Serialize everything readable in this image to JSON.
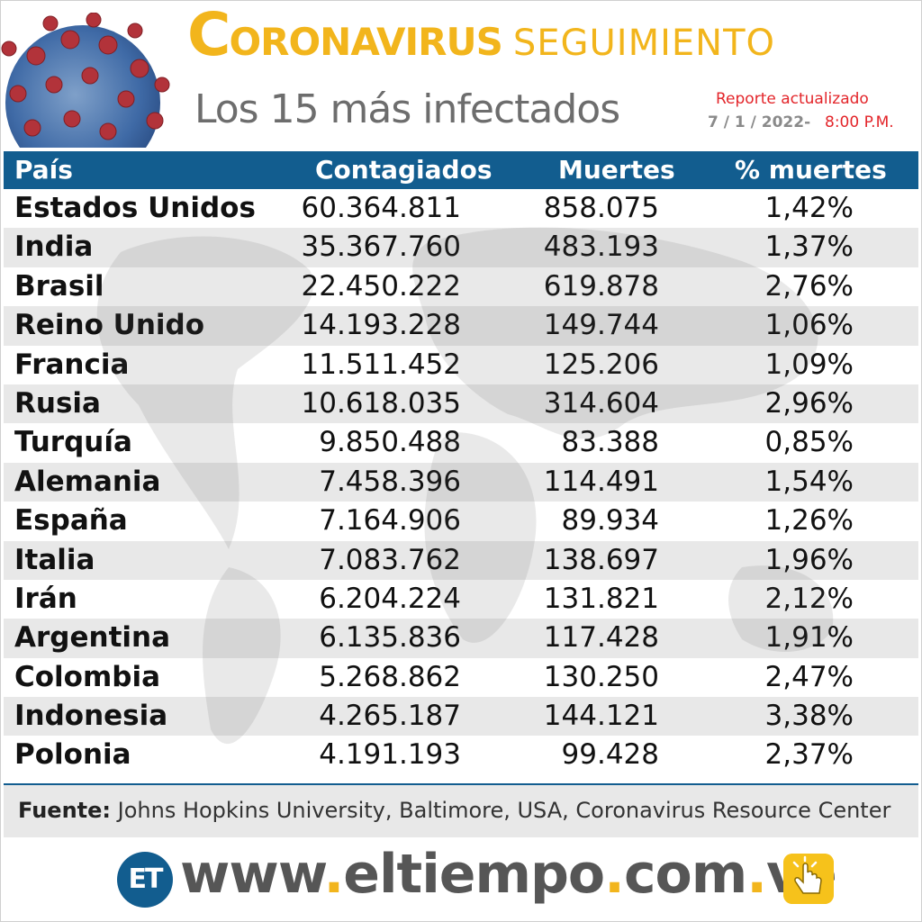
{
  "header": {
    "title_initial": "C",
    "title_rest": "ORONAVIRUS",
    "title_suffix": "SEGUIMIENTO",
    "subtitle": "Los 15 más infectados",
    "report_label": "Reporte actualizado",
    "report_date": "7 / 1 / 2022-",
    "report_time": "8:00 P.M."
  },
  "table": {
    "columns": [
      "País",
      "Contagiados",
      "Muertes",
      "% muertes"
    ],
    "rows": [
      [
        "Estados Unidos",
        "60.364.811",
        "858.075",
        "1,42%"
      ],
      [
        "India",
        "35.367.760",
        "483.193",
        "1,37%"
      ],
      [
        "Brasil",
        "22.450.222",
        "619.878",
        "2,76%"
      ],
      [
        "Reino Unido",
        "14.193.228",
        "149.744",
        "1,06%"
      ],
      [
        "Francia",
        "11.511.452",
        "125.206",
        "1,09%"
      ],
      [
        "Rusia",
        "10.618.035",
        "314.604",
        "2,96%"
      ],
      [
        "Turquía",
        "9.850.488",
        "83.388",
        "0,85%"
      ],
      [
        "Alemania",
        "7.458.396",
        "114.491",
        "1,54%"
      ],
      [
        "España",
        "7.164.906",
        "89.934",
        "1,26%"
      ],
      [
        "Italia",
        "7.083.762",
        "138.697",
        "1,96%"
      ],
      [
        "Irán",
        "6.204.224",
        "131.821",
        "2,12%"
      ],
      [
        "Argentina",
        "6.135.836",
        "117.428",
        "1,91%"
      ],
      [
        "Colombia",
        "5.268.862",
        "130.250",
        "2,47%"
      ],
      [
        "Indonesia",
        "4.265.187",
        "144.121",
        "3,38%"
      ],
      [
        "Polonia",
        "4.191.193",
        "99.428",
        "2,37%"
      ]
    ]
  },
  "source": {
    "label": "Fuente:",
    "text": " Johns Hopkins University, Baltimore, USA, Coronavirus Resource Center"
  },
  "footer": {
    "logo_text": "ET",
    "url_parts": [
      "www",
      ".",
      "eltiempo",
      ".",
      "com",
      ".",
      "ve"
    ]
  },
  "colors": {
    "accent_blue": "#125d8f",
    "accent_yellow": "#f2b51c",
    "report_red": "#e3252a"
  },
  "icons": [
    "coronavirus-icon",
    "world-map-icon",
    "hand-pointer-icon"
  ]
}
